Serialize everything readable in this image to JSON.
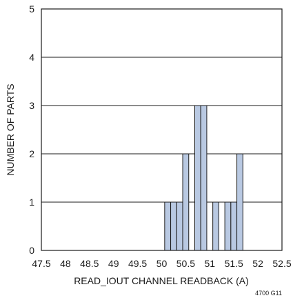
{
  "chart_data": {
    "type": "bar",
    "xlabel": "READ_IOUT CHANNEL READBACK (A)",
    "ylabel": "NUMBER OF PARTS",
    "xlim": [
      47.5,
      52.5
    ],
    "ylim": [
      0,
      5
    ],
    "x_ticks": [
      "47.5",
      "48",
      "48.5",
      "49",
      "49.5",
      "50",
      "50.5",
      "51",
      "51.5",
      "52",
      "52.5"
    ],
    "y_ticks": [
      "0",
      "1",
      "2",
      "3",
      "4",
      "5"
    ],
    "bin_width": 0.125,
    "bars": [
      {
        "x": 50.125,
        "value": 1
      },
      {
        "x": 50.25,
        "value": 1
      },
      {
        "x": 50.375,
        "value": 1
      },
      {
        "x": 50.5,
        "value": 2
      },
      {
        "x": 50.75,
        "value": 3
      },
      {
        "x": 50.875,
        "value": 3
      },
      {
        "x": 51.125,
        "value": 1
      },
      {
        "x": 51.375,
        "value": 1
      },
      {
        "x": 51.5,
        "value": 1
      },
      {
        "x": 51.625,
        "value": 2
      }
    ],
    "grid": "horizontal",
    "bar_color": "#b9c9e2",
    "bar_edge_color": "#1a1a1a"
  },
  "figure_id": "4700 G11"
}
